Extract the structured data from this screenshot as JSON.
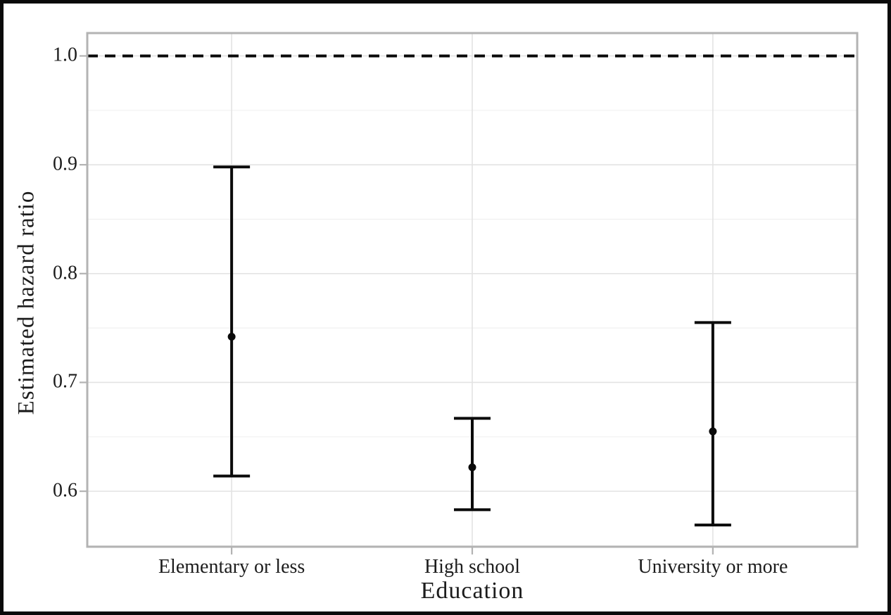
{
  "chart_data": {
    "type": "errorbar",
    "title": "",
    "xlabel": "Education",
    "ylabel": "Estimated hazard ratio",
    "categories": [
      "Elementary or less",
      "High school",
      "University or more"
    ],
    "points": [
      {
        "category": "Elementary or less",
        "estimate": 0.742,
        "ci_lower": 0.614,
        "ci_upper": 0.898
      },
      {
        "category": "High school",
        "estimate": 0.622,
        "ci_lower": 0.583,
        "ci_upper": 0.667
      },
      {
        "category": "University or more",
        "estimate": 0.655,
        "ci_lower": 0.569,
        "ci_upper": 0.755
      }
    ],
    "reference_line": {
      "value": 1.0,
      "style": "dashed",
      "color": "#0a0a0a"
    },
    "y_axis": {
      "tick_labels": [
        "1.0",
        "0.9",
        "0.8",
        "0.7",
        "0.6"
      ],
      "tick_values": [
        1.0,
        0.9,
        0.8,
        0.7,
        0.6
      ],
      "minor_tick_values": [
        0.95,
        0.85,
        0.75,
        0.65,
        0.55
      ],
      "range": [
        0.549,
        1.021
      ]
    },
    "grid": {
      "horizontal_major": true,
      "horizontal_minor": true,
      "vertical_category": true
    },
    "legend": null,
    "colors": {
      "marks": "#0a0a0a",
      "grid_major": "#e3e3e3",
      "grid_minor": "#f0f0f0",
      "panel_border": "#b3b3b3",
      "tick_mark": "#b3b3b3",
      "text": "#1c1c1c",
      "background": "#ffffff",
      "frame": "#0a0a0a"
    }
  }
}
